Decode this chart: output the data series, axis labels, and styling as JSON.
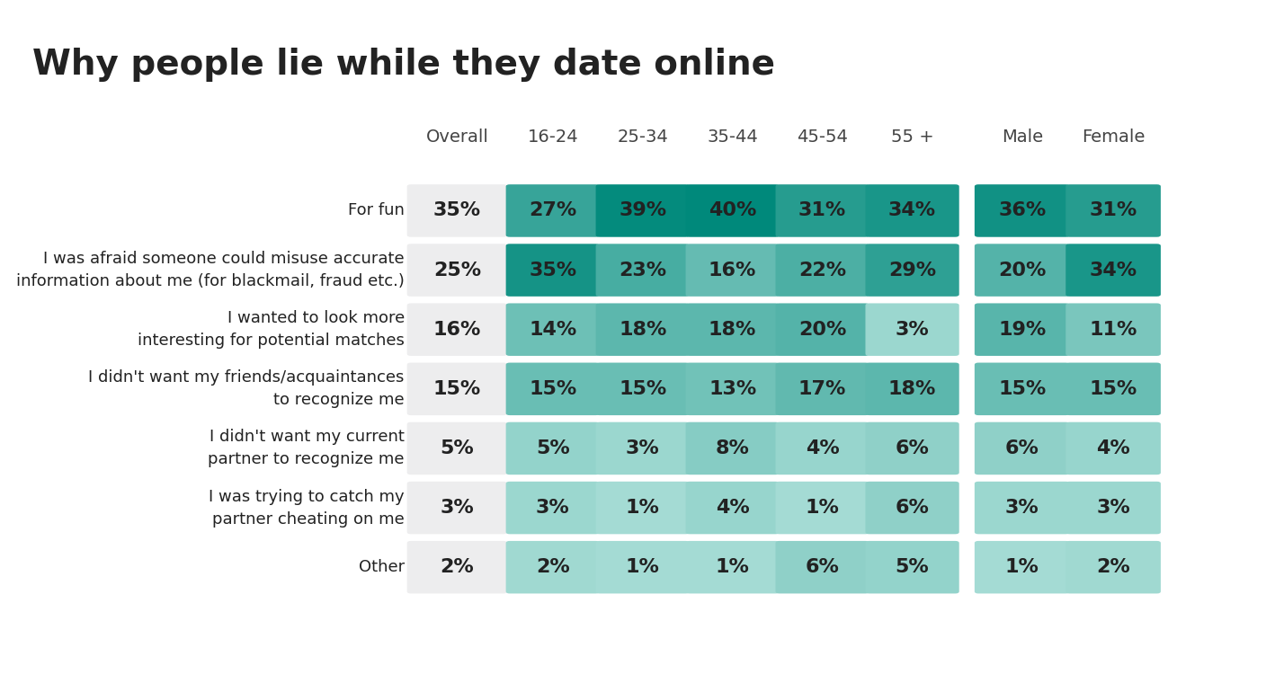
{
  "title": "Why people lie while they date online",
  "columns": [
    "Overall",
    "16-24",
    "25-34",
    "35-44",
    "45-54",
    "55 +",
    "Male",
    "Female"
  ],
  "rows": [
    {
      "label": "For fun",
      "values": [
        35,
        27,
        39,
        40,
        31,
        34,
        36,
        31
      ]
    },
    {
      "label": "I was afraid someone could misuse accurate\ninformation about me (for blackmail, fraud etc.)",
      "values": [
        25,
        35,
        23,
        16,
        22,
        29,
        20,
        34
      ]
    },
    {
      "label": "I wanted to look more\ninteresting for potential matches",
      "values": [
        16,
        14,
        18,
        18,
        20,
        3,
        19,
        11
      ]
    },
    {
      "label": "I didn't want my friends/acquaintances\nto recognize me",
      "values": [
        15,
        15,
        15,
        13,
        17,
        18,
        15,
        15
      ]
    },
    {
      "label": "I didn't want my current\npartner to recognize me",
      "values": [
        5,
        5,
        3,
        8,
        4,
        6,
        6,
        4
      ]
    },
    {
      "label": "I was trying to catch my\npartner cheating on me",
      "values": [
        3,
        3,
        1,
        4,
        1,
        6,
        3,
        3
      ]
    },
    {
      "label": "Other",
      "values": [
        2,
        2,
        1,
        1,
        6,
        5,
        1,
        2
      ]
    }
  ],
  "overall_bg": "#ededee",
  "teal_light": "#a8ddd6",
  "teal_dark": "#00897b",
  "text_color": "#222222",
  "header_color": "#444444",
  "title_fontsize": 28,
  "header_fontsize": 14,
  "cell_fontsize": 16,
  "row_label_fontsize": 13,
  "background_color": "#ffffff"
}
